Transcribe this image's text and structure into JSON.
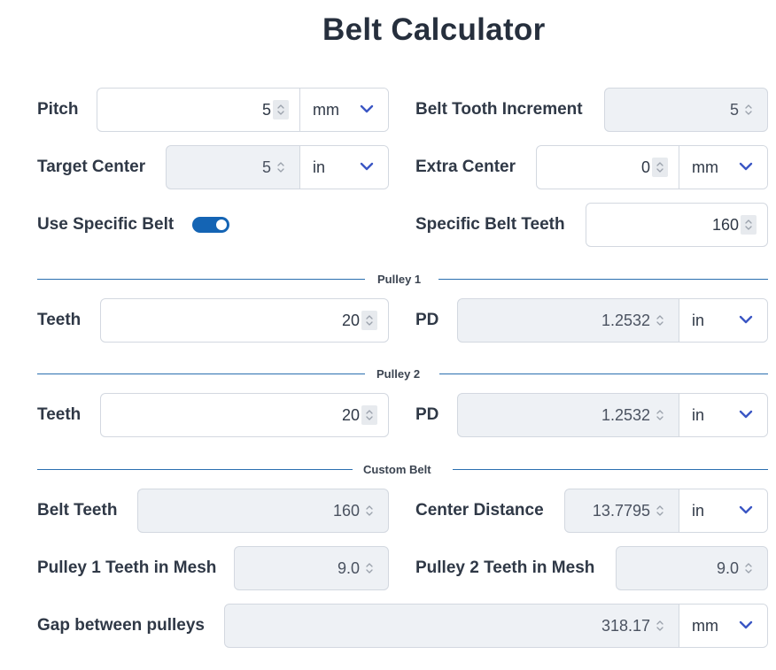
{
  "title": "Belt Calculator",
  "fields": {
    "pitch": {
      "label": "Pitch",
      "value": "5",
      "unit": "mm"
    },
    "belt_tooth_increment": {
      "label": "Belt Tooth Increment",
      "value": "5"
    },
    "target_center": {
      "label": "Target Center",
      "value": "5",
      "unit": "in"
    },
    "extra_center": {
      "label": "Extra Center",
      "value": "0",
      "unit": "mm"
    },
    "use_specific_belt": {
      "label": "Use Specific Belt",
      "enabled": true
    },
    "specific_belt_teeth": {
      "label": "Specific Belt Teeth",
      "value": "160"
    }
  },
  "sections": {
    "pulley1": "Pulley 1",
    "pulley2": "Pulley 2",
    "custom_belt": "Custom Belt"
  },
  "pulley1": {
    "teeth": {
      "label": "Teeth",
      "value": "20"
    },
    "pd": {
      "label": "PD",
      "value": "1.2532",
      "unit": "in"
    }
  },
  "pulley2": {
    "teeth": {
      "label": "Teeth",
      "value": "20"
    },
    "pd": {
      "label": "PD",
      "value": "1.2532",
      "unit": "in"
    }
  },
  "custom_belt": {
    "belt_teeth": {
      "label": "Belt Teeth",
      "value": "160"
    },
    "center_distance": {
      "label": "Center Distance",
      "value": "13.7795",
      "unit": "in"
    },
    "pulley1_mesh": {
      "label": "Pulley 1 Teeth in Mesh",
      "value": "9.0"
    },
    "pulley2_mesh": {
      "label": "Pulley 2 Teeth in Mesh",
      "value": "9.0"
    },
    "gap": {
      "label": "Gap between pulleys",
      "value": "318.17",
      "unit": "mm"
    }
  },
  "icons": {
    "spinner": "updown-chevron-icon",
    "dropdown": "chevron-down-icon"
  },
  "colors": {
    "accent": "#1464b4",
    "chevron": "#3b57c4",
    "readonly_bg": "#eef1f5",
    "border": "#d3d8e0"
  }
}
